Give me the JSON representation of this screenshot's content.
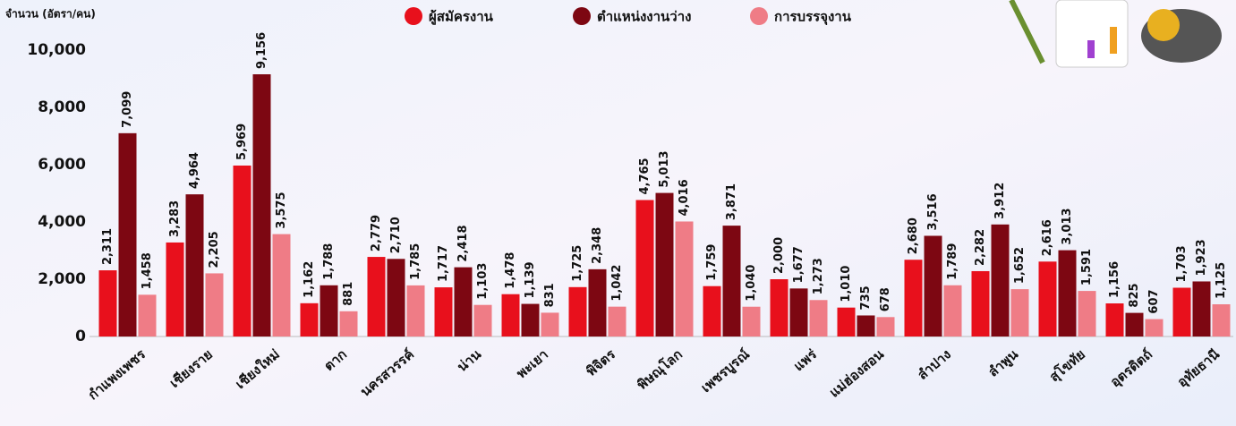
{
  "chart_data": {
    "type": "bar",
    "y_axis_label": "จำนวน (อัตรา/คน)",
    "categories": [
      "กำแพงเพชร",
      "เชียงราย",
      "เชียงใหม่",
      "ตาก",
      "นครสวรรค์",
      "น่าน",
      "พะเยา",
      "พิจิตร",
      "พิษณุโลก",
      "เพชรบูรณ์",
      "แพร่",
      "แม่ฮ่องสอน",
      "ลำปาง",
      "ลำพูน",
      "สุโขทัย",
      "อุตรดิตถ์",
      "อุทัยธานี"
    ],
    "series": [
      {
        "name": "ผู้สมัครงาน",
        "color": "#e8101c",
        "values": [
          2311,
          3283,
          5969,
          1162,
          2779,
          1717,
          1478,
          1725,
          4765,
          1759,
          2000,
          1010,
          2680,
          2282,
          2616,
          1156,
          1703
        ],
        "value_labels": [
          "2,311",
          "3,283",
          "5,969",
          "1,162",
          "2,779",
          "1,717",
          "1,478",
          "1,725",
          "4,765",
          "1,759",
          "2,000",
          "1,010",
          "2,680",
          "2,282",
          "2,616",
          "1,156",
          "1,703"
        ]
      },
      {
        "name": "ตำแหน่งงานว่าง",
        "color": "#7d0712",
        "values": [
          7099,
          4964,
          9156,
          1788,
          2710,
          2418,
          1139,
          2348,
          5013,
          3871,
          1677,
          735,
          3516,
          3912,
          3013,
          825,
          1923
        ],
        "value_labels": [
          "7,099",
          "4,964",
          "9,156",
          "1,788",
          "2,710",
          "2,418",
          "1,139",
          "2,348",
          "5,013",
          "3,871",
          "1,677",
          "735",
          "3,516",
          "3,912",
          "3,013",
          "825",
          "1,923"
        ]
      },
      {
        "name": "การบรรจุงาน",
        "color": "#ef7c86",
        "values": [
          1458,
          2205,
          3575,
          881,
          1785,
          1103,
          831,
          1042,
          4016,
          1040,
          1273,
          678,
          1789,
          1652,
          1591,
          607,
          1125
        ],
        "value_labels": [
          "1,458",
          "2,205",
          "3,575",
          "881",
          "1,785",
          "1,103",
          "831",
          "1,042",
          "4,016",
          "1,040",
          "1,273",
          "678",
          "1,789",
          "1,652",
          "1,591",
          "607",
          "1,125"
        ]
      }
    ],
    "ylim": [
      0,
      11500
    ],
    "yticks": [
      0,
      {
        "value": 2000,
        "label": "2,000"
      },
      {
        "value": 4000,
        "label": "4,000"
      },
      {
        "value": 6000,
        "label": "6,000"
      },
      {
        "value": 8000,
        "label": "8,000"
      },
      {
        "value": 10000,
        "label": "10,000"
      }
    ],
    "grid": false,
    "legend": "top"
  }
}
